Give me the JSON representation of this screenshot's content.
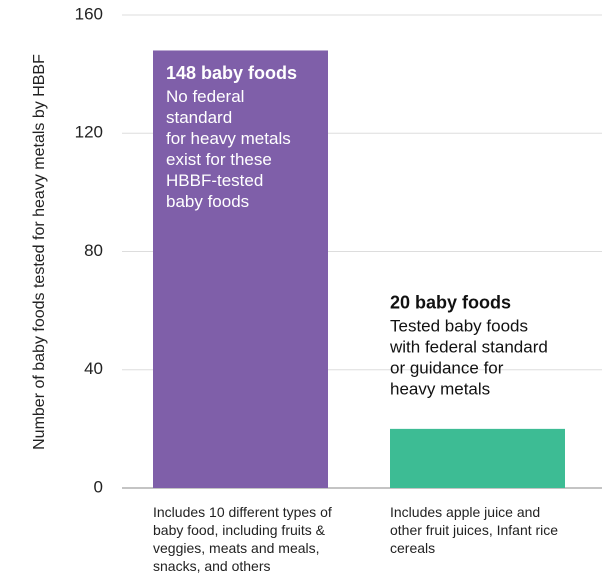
{
  "chart_data": {
    "type": "bar",
    "y_label": "Number of baby foods tested for heavy metals by HBBF",
    "categories": [
      "Includes 10 different types of baby food, including fruits & veggies, meats and meals, snacks, and others",
      "Includes apple juice and other fruit juices, Infant rice cereals"
    ],
    "values": [
      148,
      20
    ],
    "colors": [
      "#7f5fa9",
      "#3dbc94"
    ],
    "annotations": [
      {
        "title": "148 baby foods",
        "lines": [
          "No federal",
          "standard",
          "for heavy metals",
          "exist for these",
          "HBBF-tested",
          "baby foods"
        ]
      },
      {
        "title": "20 baby foods",
        "lines": [
          "Tested baby foods",
          "with federal standard",
          "or guidance for",
          "heavy metals"
        ]
      }
    ],
    "ylim": [
      0,
      160
    ],
    "yticks": [
      0,
      40,
      80,
      120,
      160
    ],
    "grid": true
  }
}
